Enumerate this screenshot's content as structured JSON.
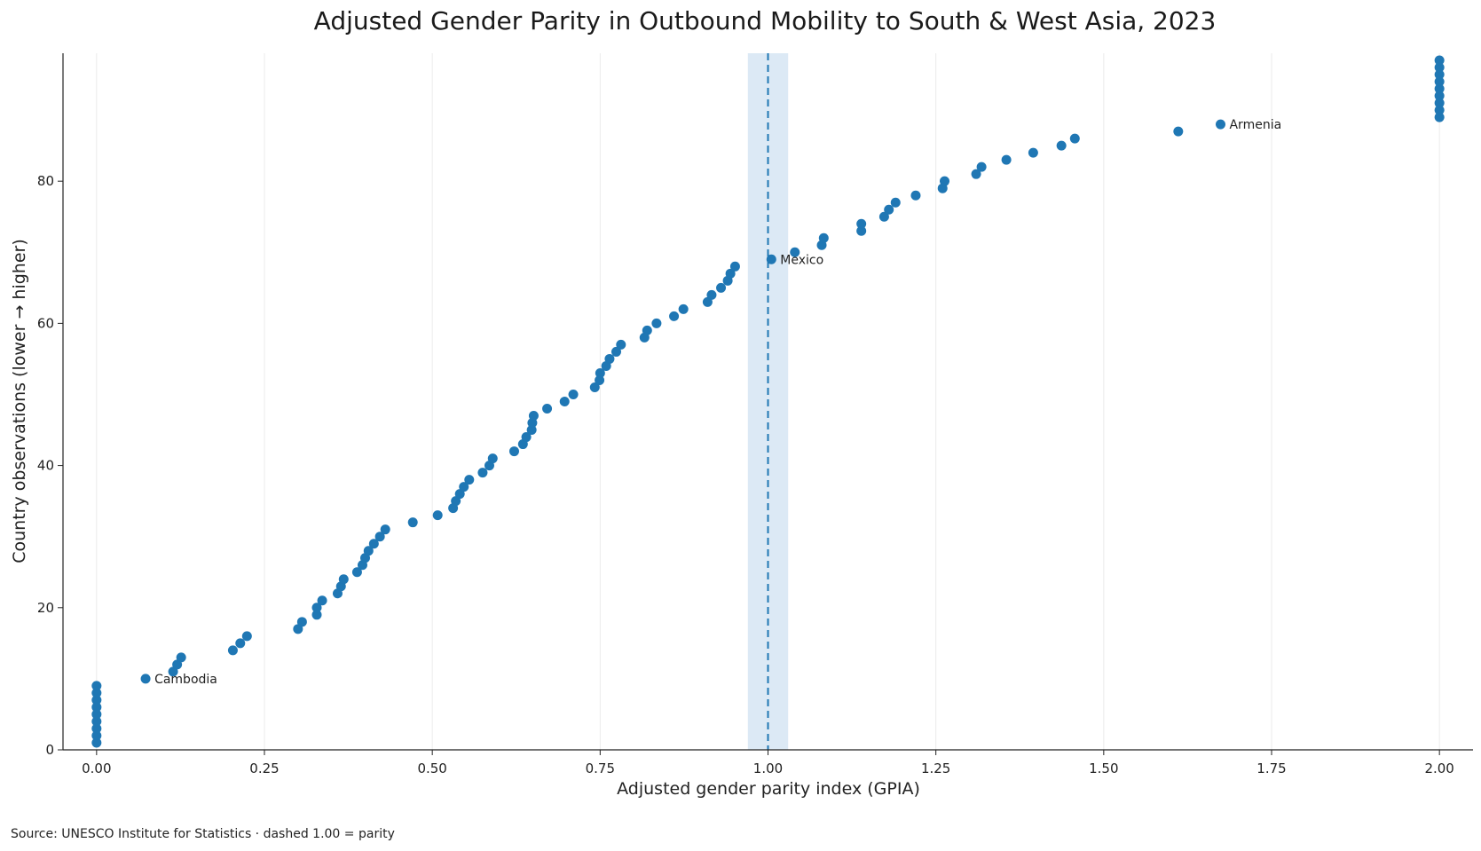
{
  "chart_data": {
    "type": "scatter",
    "title": "Adjusted Gender Parity in Outbound Mobility to South & West Asia, 2023",
    "xlabel": "Adjusted gender parity index (GPIA)",
    "ylabel": "Country observations (lower → higher)",
    "xlim": [
      -0.05,
      2.05
    ],
    "ylim": [
      0,
      98
    ],
    "x_ticks": [
      0.0,
      0.25,
      0.5,
      0.75,
      1.0,
      1.25,
      1.5,
      1.75,
      2.0
    ],
    "x_tick_labels": [
      "0.00",
      "0.25",
      "0.50",
      "0.75",
      "1.00",
      "1.25",
      "1.50",
      "1.75",
      "2.00"
    ],
    "y_ticks": [
      0,
      20,
      40,
      60,
      80
    ],
    "y_tick_labels": [
      "0",
      "20",
      "40",
      "60",
      "80"
    ],
    "grid": "vertical",
    "color": "#1f77b4",
    "reference_line": {
      "x": 1.0,
      "style": "dashed",
      "band": [
        0.97,
        1.03
      ],
      "band_color": "#dce9f5"
    },
    "points": [
      {
        "x": 0.0,
        "y": 1
      },
      {
        "x": 0.0,
        "y": 2
      },
      {
        "x": 0.0,
        "y": 3
      },
      {
        "x": 0.0,
        "y": 4
      },
      {
        "x": 0.0,
        "y": 5
      },
      {
        "x": 0.0,
        "y": 6
      },
      {
        "x": 0.0,
        "y": 7
      },
      {
        "x": 0.0,
        "y": 8
      },
      {
        "x": 0.0,
        "y": 9
      },
      {
        "x": 0.073,
        "y": 10
      },
      {
        "x": 0.114,
        "y": 11
      },
      {
        "x": 0.12,
        "y": 12
      },
      {
        "x": 0.126,
        "y": 13
      },
      {
        "x": 0.203,
        "y": 14
      },
      {
        "x": 0.214,
        "y": 15
      },
      {
        "x": 0.224,
        "y": 16
      },
      {
        "x": 0.3,
        "y": 17
      },
      {
        "x": 0.306,
        "y": 18
      },
      {
        "x": 0.328,
        "y": 19
      },
      {
        "x": 0.328,
        "y": 20
      },
      {
        "x": 0.336,
        "y": 21
      },
      {
        "x": 0.359,
        "y": 22
      },
      {
        "x": 0.364,
        "y": 23
      },
      {
        "x": 0.368,
        "y": 24
      },
      {
        "x": 0.388,
        "y": 25
      },
      {
        "x": 0.396,
        "y": 26
      },
      {
        "x": 0.4,
        "y": 27
      },
      {
        "x": 0.405,
        "y": 28
      },
      {
        "x": 0.413,
        "y": 29
      },
      {
        "x": 0.422,
        "y": 30
      },
      {
        "x": 0.43,
        "y": 31
      },
      {
        "x": 0.471,
        "y": 32
      },
      {
        "x": 0.508,
        "y": 33
      },
      {
        "x": 0.531,
        "y": 34
      },
      {
        "x": 0.535,
        "y": 35
      },
      {
        "x": 0.541,
        "y": 36
      },
      {
        "x": 0.547,
        "y": 37
      },
      {
        "x": 0.555,
        "y": 38
      },
      {
        "x": 0.575,
        "y": 39
      },
      {
        "x": 0.585,
        "y": 40
      },
      {
        "x": 0.59,
        "y": 41
      },
      {
        "x": 0.622,
        "y": 42
      },
      {
        "x": 0.635,
        "y": 43
      },
      {
        "x": 0.64,
        "y": 44
      },
      {
        "x": 0.648,
        "y": 45
      },
      {
        "x": 0.649,
        "y": 46
      },
      {
        "x": 0.651,
        "y": 47
      },
      {
        "x": 0.671,
        "y": 48
      },
      {
        "x": 0.697,
        "y": 49
      },
      {
        "x": 0.71,
        "y": 50
      },
      {
        "x": 0.742,
        "y": 51
      },
      {
        "x": 0.749,
        "y": 52
      },
      {
        "x": 0.75,
        "y": 53
      },
      {
        "x": 0.759,
        "y": 54
      },
      {
        "x": 0.764,
        "y": 55
      },
      {
        "x": 0.774,
        "y": 56
      },
      {
        "x": 0.781,
        "y": 57
      },
      {
        "x": 0.816,
        "y": 58
      },
      {
        "x": 0.82,
        "y": 59
      },
      {
        "x": 0.834,
        "y": 60
      },
      {
        "x": 0.86,
        "y": 61
      },
      {
        "x": 0.874,
        "y": 62
      },
      {
        "x": 0.91,
        "y": 63
      },
      {
        "x": 0.916,
        "y": 64
      },
      {
        "x": 0.93,
        "y": 65
      },
      {
        "x": 0.94,
        "y": 66
      },
      {
        "x": 0.944,
        "y": 67
      },
      {
        "x": 0.951,
        "y": 68
      },
      {
        "x": 1.005,
        "y": 69
      },
      {
        "x": 1.04,
        "y": 70
      },
      {
        "x": 1.08,
        "y": 71
      },
      {
        "x": 1.083,
        "y": 72
      },
      {
        "x": 1.139,
        "y": 73
      },
      {
        "x": 1.139,
        "y": 74
      },
      {
        "x": 1.173,
        "y": 75
      },
      {
        "x": 1.18,
        "y": 76
      },
      {
        "x": 1.19,
        "y": 77
      },
      {
        "x": 1.22,
        "y": 78
      },
      {
        "x": 1.26,
        "y": 79
      },
      {
        "x": 1.263,
        "y": 80
      },
      {
        "x": 1.31,
        "y": 81
      },
      {
        "x": 1.318,
        "y": 82
      },
      {
        "x": 1.355,
        "y": 83
      },
      {
        "x": 1.395,
        "y": 84
      },
      {
        "x": 1.437,
        "y": 85
      },
      {
        "x": 1.457,
        "y": 86
      },
      {
        "x": 1.611,
        "y": 87
      },
      {
        "x": 1.674,
        "y": 88
      },
      {
        "x": 2.0,
        "y": 89
      },
      {
        "x": 2.0,
        "y": 90
      },
      {
        "x": 2.0,
        "y": 91
      },
      {
        "x": 2.0,
        "y": 92
      },
      {
        "x": 2.0,
        "y": 93
      },
      {
        "x": 2.0,
        "y": 94
      },
      {
        "x": 2.0,
        "y": 95
      },
      {
        "x": 2.0,
        "y": 96
      },
      {
        "x": 2.0,
        "y": 97
      }
    ],
    "annotations": [
      {
        "label": "Cambodia",
        "x": 0.073,
        "y": 10
      },
      {
        "label": "Mexico",
        "x": 1.005,
        "y": 69
      },
      {
        "label": "Armenia",
        "x": 1.674,
        "y": 88
      }
    ],
    "source_note": "Source: UNESCO Institute for Statistics · dashed 1.00 = parity"
  }
}
